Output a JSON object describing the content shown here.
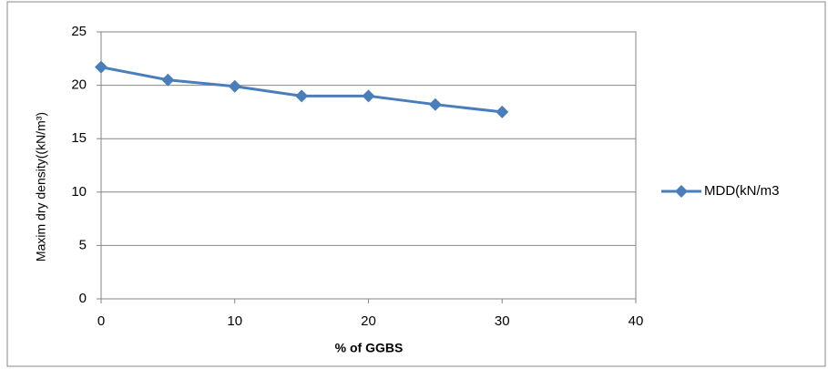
{
  "chart_data": {
    "type": "line",
    "x": [
      0,
      5,
      10,
      15,
      20,
      25,
      30
    ],
    "series": [
      {
        "name": "MDD(kN/m3",
        "color": "#4a7ebb",
        "values": [
          21.7,
          20.5,
          19.9,
          19.0,
          19.0,
          18.2,
          17.5
        ]
      }
    ],
    "xlabel": "% of GGBS",
    "ylabel": "Maxim dry density((kN/m³)",
    "xlim": [
      0,
      40
    ],
    "xticks": [
      0,
      10,
      20,
      30,
      40
    ],
    "ylim": [
      0,
      25
    ],
    "yticks": [
      0,
      5,
      10,
      15,
      20,
      25
    ],
    "grid": true,
    "legend": "right",
    "marker": "diamond"
  }
}
